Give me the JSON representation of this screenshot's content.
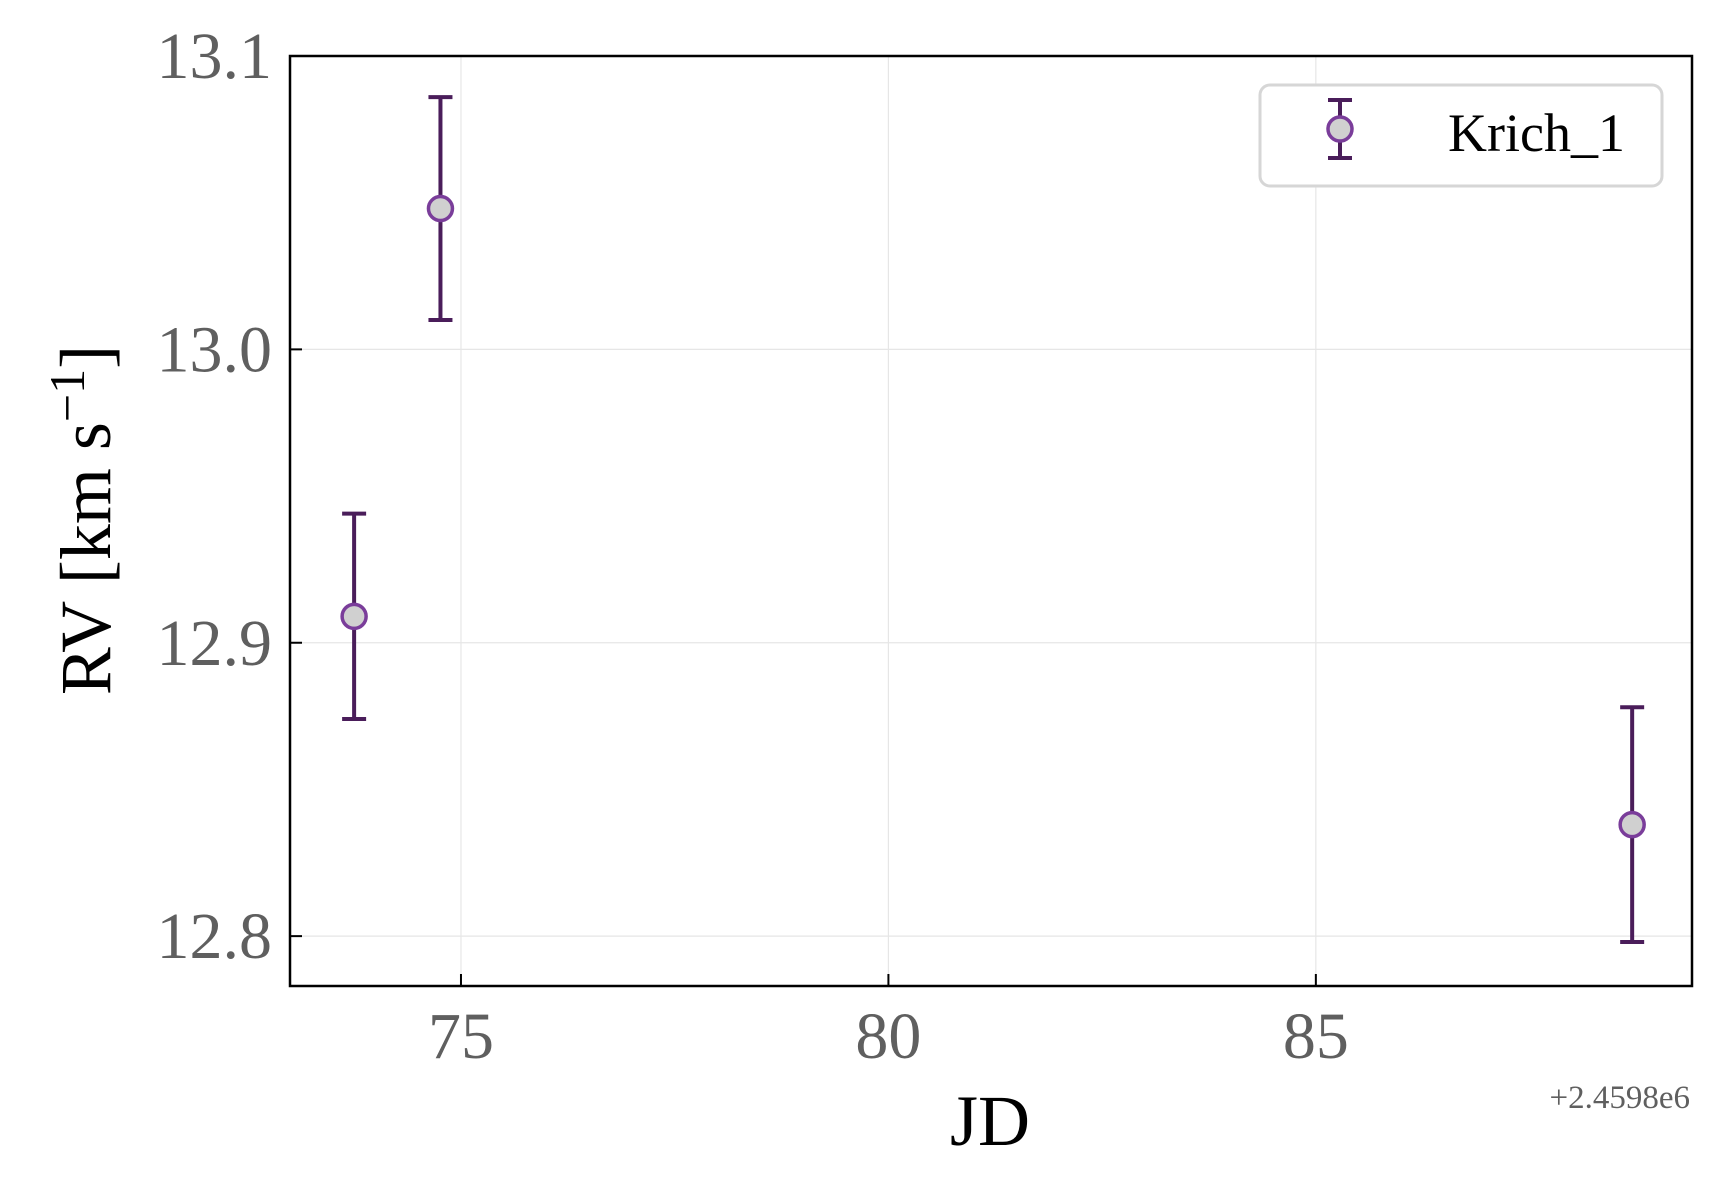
{
  "chart_data": {
    "type": "scatter",
    "xlabel": "JD",
    "ylabel_main": "RV [km s",
    "ylabel_sup": "−1",
    "ylabel_close": "]",
    "x_offset_label": "+2.4598e6",
    "xlim": [
      73.0,
      89.4
    ],
    "ylim": [
      12.783,
      13.1
    ],
    "xticks": [
      75,
      80,
      85
    ],
    "xtick_labels": [
      "75",
      "80",
      "85"
    ],
    "yticks": [
      12.8,
      12.9,
      13.0,
      13.1
    ],
    "ytick_labels": [
      "12.8",
      "12.9",
      "13.0",
      "13.1"
    ],
    "grid": true,
    "legend_placement": "top-right",
    "series": [
      {
        "name": "Krich_1",
        "points": [
          {
            "x": 73.75,
            "y": 12.909,
            "err": 0.035
          },
          {
            "x": 74.76,
            "y": 13.048,
            "err": 0.038
          },
          {
            "x": 88.7,
            "y": 12.838,
            "err": 0.04
          }
        ]
      }
    ],
    "colors": {
      "marker_face": "#d0d0d0",
      "marker_edge": "#7a3d9a",
      "errorbar": "#4a1d5a",
      "grid": "#e6e6e6",
      "frame": "#000000"
    }
  }
}
